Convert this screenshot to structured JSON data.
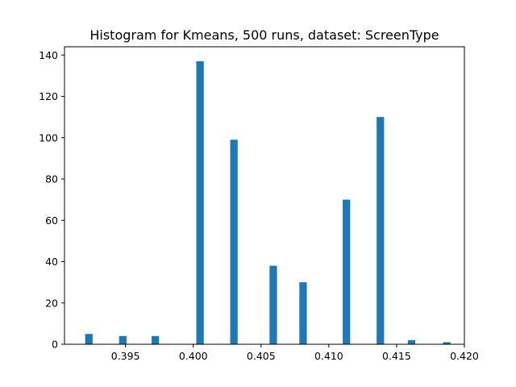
{
  "chart_data": {
    "type": "bar",
    "title": "Histogram for Kmeans, 500 runs, dataset: ScreenType",
    "xlabel": "",
    "ylabel": "",
    "xlim": [
      0.3905,
      0.42
    ],
    "ylim": [
      0,
      144
    ],
    "bar_width": 0.00055,
    "x_ticks": [
      {
        "value": 0.395,
        "label": "0.395"
      },
      {
        "value": 0.4,
        "label": "0.400"
      },
      {
        "value": 0.405,
        "label": "0.405"
      },
      {
        "value": 0.41,
        "label": "0.410"
      },
      {
        "value": 0.415,
        "label": "0.415"
      },
      {
        "value": 0.42,
        "label": "0.420"
      }
    ],
    "y_ticks": [
      {
        "value": 0,
        "label": "0"
      },
      {
        "value": 20,
        "label": "20"
      },
      {
        "value": 40,
        "label": "40"
      },
      {
        "value": 60,
        "label": "60"
      },
      {
        "value": 80,
        "label": "80"
      },
      {
        "value": 100,
        "label": "100"
      },
      {
        "value": 120,
        "label": "120"
      },
      {
        "value": 140,
        "label": "140"
      }
    ],
    "bins": [
      {
        "x": 0.3923,
        "count": 5
      },
      {
        "x": 0.3948,
        "count": 4
      },
      {
        "x": 0.3972,
        "count": 4
      },
      {
        "x": 0.4005,
        "count": 137
      },
      {
        "x": 0.403,
        "count": 99
      },
      {
        "x": 0.4059,
        "count": 38
      },
      {
        "x": 0.4081,
        "count": 30
      },
      {
        "x": 0.4113,
        "count": 70
      },
      {
        "x": 0.4138,
        "count": 110
      },
      {
        "x": 0.4161,
        "count": 2
      },
      {
        "x": 0.4187,
        "count": 1
      }
    ],
    "color": "#1f77b4",
    "grid": false,
    "legend": "none"
  }
}
